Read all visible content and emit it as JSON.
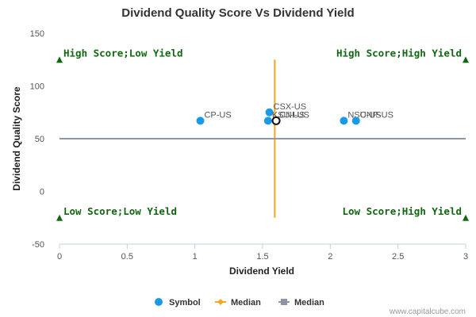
{
  "chart_data": {
    "type": "scatter",
    "title": "Dividend Quality Score Vs Dividend Yield",
    "xlabel": "Dividend Yield",
    "ylabel": "Dividend Quality Score",
    "xlim": [
      0,
      3
    ],
    "ylim": [
      -50,
      150
    ],
    "xticks": [
      "0",
      "0.5",
      "1",
      "1.5",
      "2",
      "2.5",
      "3"
    ],
    "yticks": [
      "-50",
      "0",
      "50",
      "100",
      "150"
    ],
    "grid": false,
    "legend_placement": "bottom-center",
    "series": [
      {
        "name": "Symbol",
        "color": "#1a9ae6",
        "points": [
          {
            "label": "CP-US",
            "x": 1.04,
            "y": 67
          },
          {
            "label": "CSX-US",
            "x": 1.55,
            "y": 75
          },
          {
            "label": "KSU-US",
            "x": 1.54,
            "y": 67
          },
          {
            "label": "NSC-US",
            "x": 2.1,
            "y": 67
          },
          {
            "label": "UNP-US",
            "x": 2.19,
            "y": 67
          }
        ]
      },
      {
        "name": "Median",
        "color": "#f5a623",
        "line": {
          "x": [
            1.59,
            1.59
          ],
          "y": [
            -25,
            125
          ]
        }
      },
      {
        "name": "Median",
        "color": "#8e96a3",
        "line": {
          "x": [
            0,
            3
          ],
          "y": [
            50,
            50
          ]
        }
      }
    ],
    "highlight": {
      "label": "CNI-US",
      "x": 1.6,
      "y": 67
    },
    "quadrants": [
      {
        "label": "High Score;Low Yield",
        "x": 0,
        "y": 125
      },
      {
        "label": "High Score;High Yield",
        "x": 3,
        "y": 125
      },
      {
        "label": "Low Score;Low Yield",
        "x": 0,
        "y": -25
      },
      {
        "label": "Low Score;High Yield",
        "x": 3,
        "y": -25
      }
    ],
    "quadrant_color": "#116611"
  },
  "credit": "www.capitalcube.com"
}
